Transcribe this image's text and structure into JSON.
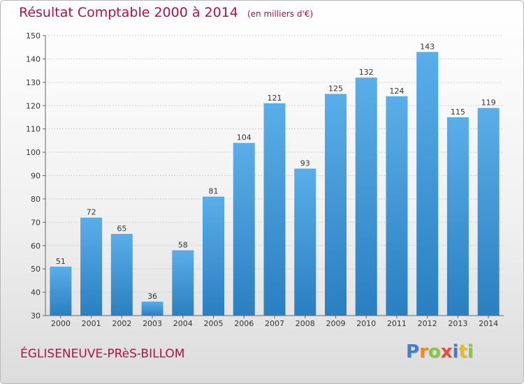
{
  "header": {
    "title": "Résultat Comptable 2000 à 2014",
    "subtitle": "(en milliers d'€)"
  },
  "footer": {
    "commune": "ÉGLISENEUVE-PRèS-BILLOM",
    "brand": "Proxiti"
  },
  "colors": {
    "title": "#b0134a",
    "bar_top": "#5aaee8",
    "bar_bottom": "#2a7fc0",
    "brand_letters": [
      "#3d7fd0",
      "#f08a1c",
      "#8bc53f",
      "#e84c3d",
      "#3d7fd0",
      "#f0b81c",
      "#8bc53f"
    ]
  },
  "chart_data": {
    "type": "bar",
    "title": "Résultat Comptable 2000 à 2014",
    "subtitle": "(en milliers d'€)",
    "categories": [
      "2000",
      "2001",
      "2002",
      "2003",
      "2004",
      "2005",
      "2006",
      "2007",
      "2008",
      "2009",
      "2010",
      "2011",
      "2012",
      "2013",
      "2014"
    ],
    "values": [
      51,
      72,
      65,
      36,
      58,
      81,
      104,
      121,
      93,
      125,
      132,
      124,
      143,
      115,
      119
    ],
    "ylim": [
      30,
      150
    ],
    "yticks": [
      30,
      40,
      50,
      60,
      70,
      80,
      90,
      100,
      110,
      120,
      130,
      140,
      150
    ],
    "grid": true,
    "data_labels": true
  }
}
